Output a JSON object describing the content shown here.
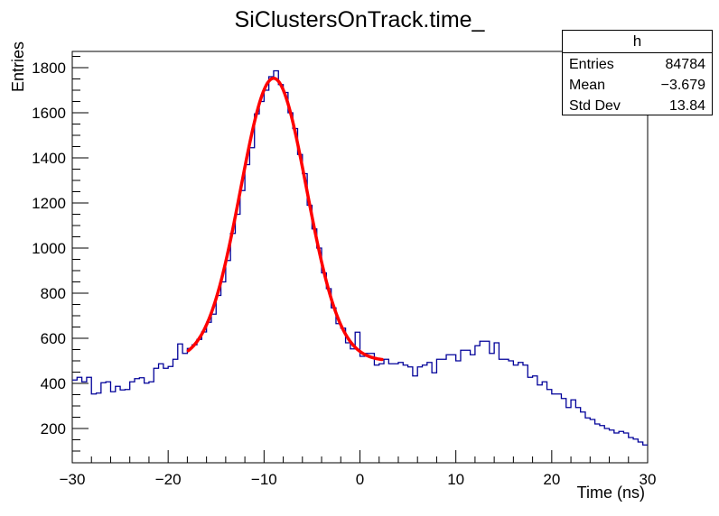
{
  "title": "SiClustersOnTrack.time_",
  "stats": {
    "title": "h",
    "rows": [
      {
        "label": "Entries",
        "value": "84784"
      },
      {
        "label": "Mean",
        "value": "−3.679"
      },
      {
        "label": "Std Dev",
        "value": "13.84"
      }
    ]
  },
  "colors": {
    "histogram_line": "#000099",
    "fit_line": "#ff0000",
    "axis": "#000000",
    "background": "#ffffff"
  },
  "chart_data": {
    "type": "bar",
    "subtype": "histogram-step",
    "title": "SiClustersOnTrack.time_",
    "xlabel": "Time (ns)",
    "ylabel": "Entries",
    "xlim": [
      -30,
      30
    ],
    "ylim": [
      48,
      1872
    ],
    "grid": false,
    "legend": "none",
    "x_major_ticks": [
      -30,
      -20,
      -10,
      0,
      10,
      20,
      30
    ],
    "x_tick_labels": [
      "−30",
      "−20",
      "−10",
      "0",
      "10",
      "20",
      "30"
    ],
    "x_minor_step": 2,
    "y_major_ticks": [
      200,
      400,
      600,
      800,
      1000,
      1200,
      1400,
      1600,
      1800
    ],
    "y_tick_labels": [
      "200",
      "400",
      "600",
      "800",
      "1000",
      "1200",
      "1400",
      "1600",
      "1800"
    ],
    "y_minor_step": 50,
    "bin_start": -30,
    "bin_width": 0.5,
    "bins": [
      415,
      427,
      407,
      427,
      353,
      357,
      403,
      407,
      363,
      387,
      371,
      373,
      407,
      421,
      425,
      401,
      407,
      467,
      487,
      467,
      475,
      507,
      575,
      533,
      555,
      571,
      595,
      628,
      671,
      707,
      790,
      850,
      945,
      1065,
      1150,
      1255,
      1370,
      1445,
      1595,
      1650,
      1700,
      1760,
      1786,
      1725,
      1690,
      1600,
      1530,
      1415,
      1330,
      1190,
      1085,
      1000,
      890,
      820,
      735,
      665,
      645,
      580,
      553,
      627,
      520,
      533,
      533,
      481,
      487,
      507,
      487,
      487,
      493,
      481,
      473,
      433,
      473,
      481,
      493,
      447,
      507,
      507,
      527,
      527,
      500,
      547,
      547,
      527,
      567,
      587,
      587,
      533,
      580,
      507,
      507,
      500,
      481,
      493,
      481,
      427,
      433,
      393,
      407,
      373,
      353,
      353,
      333,
      293,
      327,
      293,
      273,
      247,
      240,
      220,
      213,
      200,
      193,
      180,
      187,
      180,
      160,
      153,
      140,
      127
    ],
    "fit": {
      "type": "gaussian_plus_constant",
      "base": 500,
      "amplitude": 1253,
      "mean": -9.0,
      "sigma": 3.45,
      "range": [
        -17.9,
        2.3
      ]
    }
  }
}
